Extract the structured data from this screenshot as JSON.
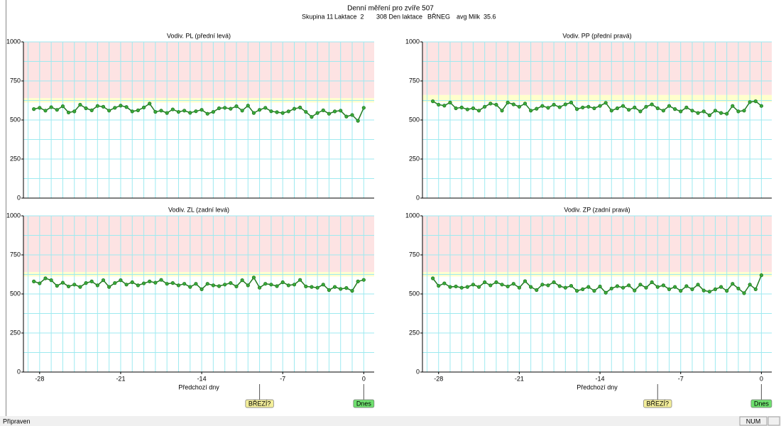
{
  "header": {
    "title": "Denní měření pro zvíře 507",
    "info": [
      "Skupina 11",
      "Laktace  2",
      "308 Den laktace",
      "BŘNEG",
      "avg Milk  35.6"
    ]
  },
  "chart_data": [
    {
      "type": "line",
      "title": "Vodiv. PL (přední levá)",
      "x": [
        -28.5,
        -28,
        -27.5,
        -27,
        -26.5,
        -26,
        -25.5,
        -25,
        -24.5,
        -24,
        -23.5,
        -23,
        -22.5,
        -22,
        -21.5,
        -21,
        -20.5,
        -20,
        -19.5,
        -19,
        -18.5,
        -18,
        -17.5,
        -17,
        -16.5,
        -16,
        -15.5,
        -15,
        -14.5,
        -14,
        -13.5,
        -13,
        -12.5,
        -12,
        -11.5,
        -11,
        -10.5,
        -10,
        -9.5,
        -9,
        -8.5,
        -8,
        -7.5,
        -7,
        -6.5,
        -6,
        -5.5,
        -5,
        -4.5,
        -4,
        -3.5,
        -3,
        -2.5,
        -2,
        -1.5,
        -1,
        -0.5,
        0
      ],
      "values": [
        570,
        578,
        560,
        582,
        565,
        588,
        548,
        555,
        598,
        575,
        562,
        590,
        585,
        560,
        578,
        592,
        583,
        555,
        562,
        580,
        605,
        552,
        560,
        545,
        568,
        552,
        560,
        546,
        556,
        565,
        540,
        552,
        575,
        578,
        572,
        588,
        560,
        592,
        545,
        565,
        578,
        556,
        550,
        545,
        555,
        572,
        580,
        552,
        520,
        545,
        562,
        540,
        555,
        560,
        522,
        532,
        495,
        578
      ],
      "color": "#1f7a1f",
      "xlim": [
        -29.4,
        0.9
      ],
      "ylim": [
        0,
        1000
      ],
      "yticks": [
        0,
        250,
        500,
        750,
        1000
      ],
      "ygrid_step": 125,
      "xgrid_step": 1,
      "zones": [
        {
          "from": 640,
          "to": 1000,
          "color": "#fde3e3"
        },
        {
          "from": 612,
          "to": 640,
          "color": "#ffffcc"
        }
      ]
    },
    {
      "type": "line",
      "title": "Vodiv. PP (přední pravá)",
      "x": [
        -28.5,
        -28,
        -27.5,
        -27,
        -26.5,
        -26,
        -25.5,
        -25,
        -24.5,
        -24,
        -23.5,
        -23,
        -22.5,
        -22,
        -21.5,
        -21,
        -20.5,
        -20,
        -19.5,
        -19,
        -18.5,
        -18,
        -17.5,
        -17,
        -16.5,
        -16,
        -15.5,
        -15,
        -14.5,
        -14,
        -13.5,
        -13,
        -12.5,
        -12,
        -11.5,
        -11,
        -10.5,
        -10,
        -9.5,
        -9,
        -8.5,
        -8,
        -7.5,
        -7,
        -6.5,
        -6,
        -5.5,
        -5,
        -4.5,
        -4,
        -3.5,
        -3,
        -2.5,
        -2,
        -1.5,
        -1,
        -0.5,
        0
      ],
      "values": [
        620,
        598,
        592,
        612,
        575,
        580,
        568,
        575,
        560,
        585,
        605,
        598,
        560,
        612,
        600,
        585,
        605,
        560,
        572,
        590,
        578,
        598,
        582,
        600,
        612,
        570,
        580,
        585,
        575,
        590,
        610,
        560,
        575,
        590,
        565,
        580,
        555,
        585,
        600,
        575,
        560,
        590,
        570,
        555,
        580,
        560,
        545,
        555,
        530,
        560,
        545,
        540,
        590,
        555,
        560,
        615,
        620,
        590
      ],
      "color": "#1f7a1f",
      "xlim": [
        -29.4,
        0.9
      ],
      "ylim": [
        0,
        1000
      ],
      "yticks": [
        0,
        250,
        500,
        750,
        1000
      ],
      "ygrid_step": 125,
      "xgrid_step": 1,
      "zones": [
        {
          "from": 660,
          "to": 1000,
          "color": "#fde3e3"
        },
        {
          "from": 615,
          "to": 660,
          "color": "#ffffcc"
        }
      ]
    },
    {
      "type": "line",
      "title": "Vodiv. ZL (zadní levá)",
      "x": [
        -28.5,
        -28,
        -27.5,
        -27,
        -26.5,
        -26,
        -25.5,
        -25,
        -24.5,
        -24,
        -23.5,
        -23,
        -22.5,
        -22,
        -21.5,
        -21,
        -20.5,
        -20,
        -19.5,
        -19,
        -18.5,
        -18,
        -17.5,
        -17,
        -16.5,
        -16,
        -15.5,
        -15,
        -14.5,
        -14,
        -13.5,
        -13,
        -12.5,
        -12,
        -11.5,
        -11,
        -10.5,
        -10,
        -9.5,
        -9,
        -8.5,
        -8,
        -7.5,
        -7,
        -6.5,
        -6,
        -5.5,
        -5,
        -4.5,
        -4,
        -3.5,
        -3,
        -2.5,
        -2,
        -1.5,
        -1,
        -0.5,
        0
      ],
      "values": [
        580,
        568,
        600,
        588,
        552,
        572,
        548,
        560,
        545,
        570,
        580,
        555,
        588,
        545,
        570,
        588,
        560,
        575,
        555,
        568,
        580,
        572,
        590,
        565,
        570,
        555,
        565,
        545,
        565,
        530,
        565,
        555,
        550,
        560,
        570,
        548,
        588,
        555,
        605,
        540,
        565,
        560,
        550,
        575,
        555,
        560,
        590,
        548,
        545,
        540,
        560,
        525,
        545,
        532,
        538,
        520,
        580,
        590
      ],
      "color": "#1f7a1f",
      "xlim": [
        -29.4,
        0.9
      ],
      "ylim": [
        0,
        1000
      ],
      "yticks": [
        0,
        250,
        500,
        750,
        1000
      ],
      "xticks": [
        -28,
        -21,
        -14,
        -7,
        0
      ],
      "xlabel": "Předchozí dny",
      "ygrid_step": 125,
      "xgrid_step": 1,
      "zones": [
        {
          "from": 640,
          "to": 1000,
          "color": "#fde3e3"
        },
        {
          "from": 612,
          "to": 640,
          "color": "#ffffcc"
        }
      ],
      "annotations": [
        {
          "text": "BŘEZÍ?",
          "x": -9,
          "color": "#f3ee9a"
        },
        {
          "text": "Dnes",
          "x": 0,
          "color": "#6ee06e"
        }
      ]
    },
    {
      "type": "line",
      "title": "Vodiv. ZP (zadní pravá)",
      "x": [
        -28.5,
        -28,
        -27.5,
        -27,
        -26.5,
        -26,
        -25.5,
        -25,
        -24.5,
        -24,
        -23.5,
        -23,
        -22.5,
        -22,
        -21.5,
        -21,
        -20.5,
        -20,
        -19.5,
        -19,
        -18.5,
        -18,
        -17.5,
        -17,
        -16.5,
        -16,
        -15.5,
        -15,
        -14.5,
        -14,
        -13.5,
        -13,
        -12.5,
        -12,
        -11.5,
        -11,
        -10.5,
        -10,
        -9.5,
        -9,
        -8.5,
        -8,
        -7.5,
        -7,
        -6.5,
        -6,
        -5.5,
        -5,
        -4.5,
        -4,
        -3.5,
        -3,
        -2.5,
        -2,
        -1.5,
        -1,
        -0.5,
        0
      ],
      "values": [
        600,
        552,
        568,
        545,
        548,
        540,
        545,
        560,
        545,
        575,
        555,
        575,
        560,
        548,
        565,
        540,
        582,
        545,
        525,
        560,
        555,
        575,
        550,
        540,
        552,
        520,
        530,
        545,
        520,
        548,
        508,
        535,
        550,
        540,
        555,
        522,
        560,
        540,
        575,
        545,
        555,
        530,
        545,
        520,
        550,
        530,
        560,
        522,
        515,
        530,
        545,
        520,
        565,
        535,
        505,
        560,
        530,
        620
      ],
      "color": "#1f7a1f",
      "xlim": [
        -29.4,
        0.9
      ],
      "ylim": [
        0,
        1000
      ],
      "yticks": [
        0,
        250,
        500,
        750,
        1000
      ],
      "xticks": [
        -28,
        -21,
        -14,
        -7,
        0
      ],
      "xlabel": "Předchozí dny",
      "ygrid_step": 125,
      "xgrid_step": 1,
      "zones": [
        {
          "from": 640,
          "to": 1000,
          "color": "#fde3e3"
        },
        {
          "from": 612,
          "to": 640,
          "color": "#ffffcc"
        }
      ],
      "annotations": [
        {
          "text": "BŘEZÍ?",
          "x": -9,
          "color": "#f3ee9a"
        },
        {
          "text": "Dnes",
          "x": 0,
          "color": "#6ee06e"
        }
      ]
    }
  ],
  "status_bar": {
    "text": "Připraven",
    "indicator": "NUM"
  }
}
